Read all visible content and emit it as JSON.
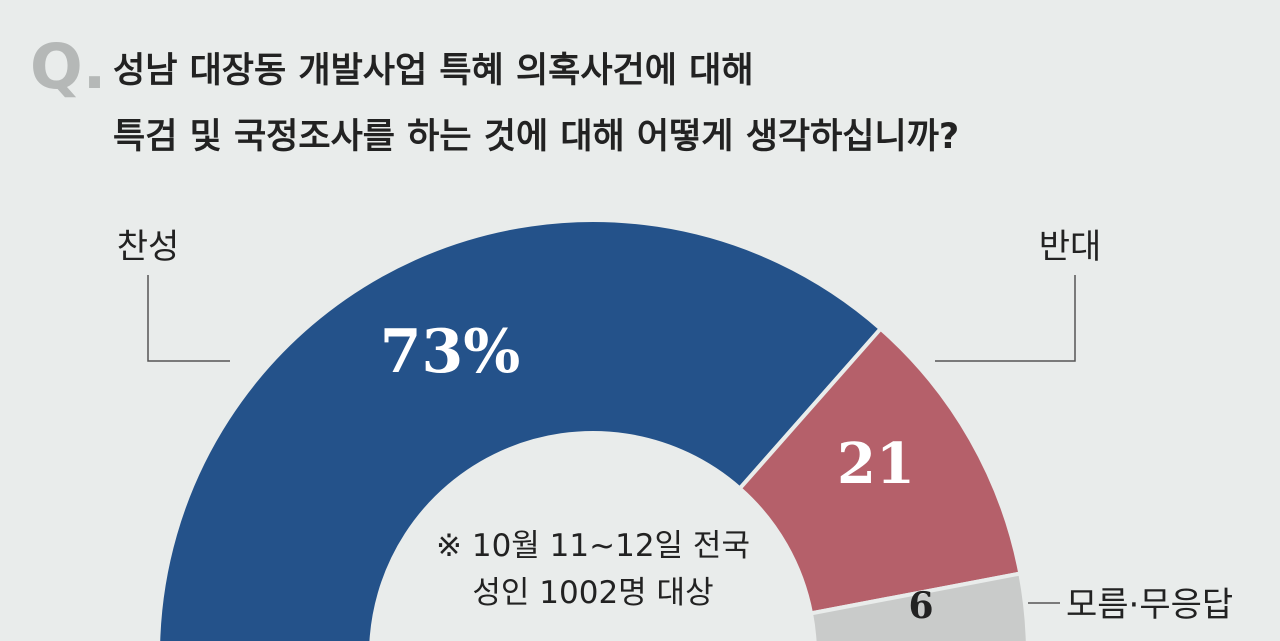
{
  "question": {
    "mark": "Q.",
    "line1": "성남 대장동 개발사업 특혜 의혹사건에 대해",
    "line2": "특검 및 국정조사를 하는 것에 대해 어떻게 생각하십니까?"
  },
  "note": {
    "line1": "※ 10월 11~12일 전국",
    "line2": "성인 1002명 대상"
  },
  "chart_data": {
    "type": "pie",
    "shape": "half-donut",
    "title": "성남 대장동 개발사업 특혜 의혹사건에 대해 특검 및 국정조사를 하는 것에 대해 어떻게 생각하십니까?",
    "unit": "%",
    "slices": [
      {
        "label": "찬성",
        "value": 73,
        "value_text": "73%",
        "color": "#24528a"
      },
      {
        "label": "반대",
        "value": 21,
        "value_text": "21",
        "color": "#b5606a"
      },
      {
        "label": "모름·무응답",
        "value": 6,
        "value_text": "6",
        "color": "#c9cbca"
      }
    ]
  },
  "colors": {
    "background": "#e9eceb",
    "title": "#222222",
    "q_mark": "#b5b8b7",
    "label_light": "#ffffff",
    "label_dark": "#222222"
  }
}
